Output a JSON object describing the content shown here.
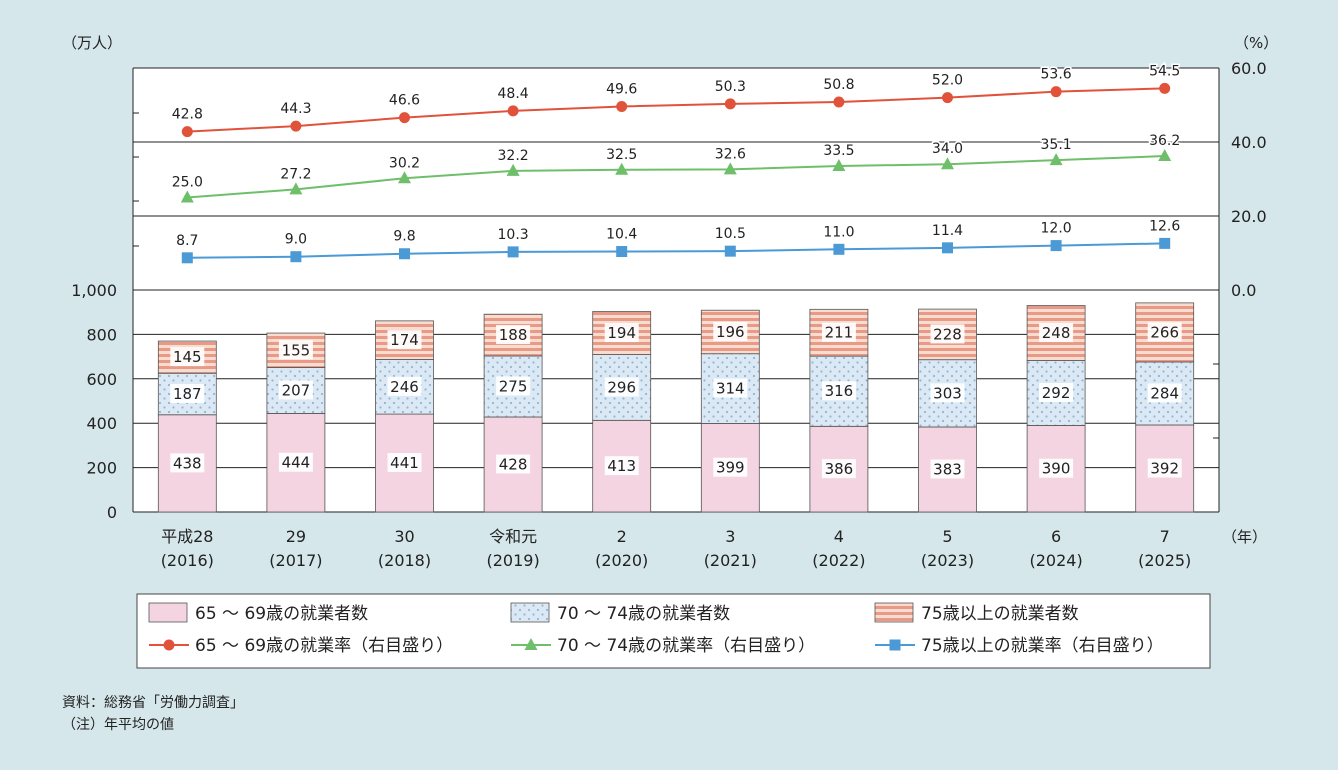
{
  "source_note": "資料：総務省「労働力調査」",
  "footnote": "（注）年平均の値",
  "colors": {
    "bar_65_69": "#f3d4e0",
    "bar_70_74": "#dce9f4",
    "bar_70_74_dot": "#8fb7d8",
    "bar_75_plus": "#f2c6b4",
    "bar_75_plus_stripe": "#e3887c",
    "line_65_69": "#e0533a",
    "line_70_74": "#6fbf6a",
    "line_75_plus": "#4b9ad6",
    "background": "#d6e7ec"
  },
  "chart_data": {
    "type": "bar",
    "categories": [
      [
        "平成28",
        "(2016)"
      ],
      [
        "29",
        "(2017)"
      ],
      [
        "30",
        "(2018)"
      ],
      [
        "令和元",
        "(2019)"
      ],
      [
        "2",
        "(2020)"
      ],
      [
        "3",
        "(2021)"
      ],
      [
        "4",
        "(2022)"
      ],
      [
        "5",
        "(2023)"
      ],
      [
        "6",
        "(2024)"
      ],
      [
        "7",
        "(2025)"
      ]
    ],
    "left_axis_unit": "（万人）",
    "right_axis_unit": "（%）",
    "x_axis_unit": "（年）",
    "left_axis": {
      "ylim": [
        0,
        1000
      ],
      "ticks": [
        "0",
        "200",
        "400",
        "600",
        "800",
        "1,000"
      ]
    },
    "right_axis": {
      "ylim": [
        0,
        60
      ],
      "ticks": [
        "0.0",
        "20.0",
        "40.0",
        "60.0"
      ]
    },
    "grid": true,
    "legend_position": "bottom",
    "bar_series": [
      {
        "name": "65 ～ 69歳の就業者数",
        "values": [
          438,
          444,
          441,
          428,
          413,
          399,
          386,
          383,
          390,
          392
        ]
      },
      {
        "name": "70 ～ 74歳の就業者数",
        "values": [
          187,
          207,
          246,
          275,
          296,
          314,
          316,
          303,
          292,
          284
        ]
      },
      {
        "name": "75歳以上の就業者数",
        "values": [
          145,
          155,
          174,
          188,
          194,
          196,
          211,
          228,
          248,
          266
        ]
      }
    ],
    "line_series": [
      {
        "name": "65 ～ 69歳の就業率（右目盛り）",
        "marker": "circle",
        "values": [
          42.8,
          44.3,
          46.6,
          48.4,
          49.6,
          50.3,
          50.8,
          52.0,
          53.6,
          54.5
        ],
        "labels": [
          "42.8",
          "44.3",
          "46.6",
          "48.4",
          "49.6",
          "50.3",
          "50.8",
          "52.0",
          "53.6",
          "54.5"
        ]
      },
      {
        "name": "70 ～ 74歳の就業率（右目盛り）",
        "marker": "triangle",
        "values": [
          25.0,
          27.2,
          30.2,
          32.2,
          32.5,
          32.6,
          33.5,
          34.0,
          35.1,
          36.2
        ],
        "labels": [
          "25.0",
          "27.2",
          "30.2",
          "32.2",
          "32.5",
          "32.6",
          "33.5",
          "34.0",
          "35.1",
          "36.2"
        ]
      },
      {
        "name": "75歳以上の就業率（右目盛り）",
        "marker": "square",
        "values": [
          8.7,
          9.0,
          9.8,
          10.3,
          10.4,
          10.5,
          11.0,
          11.4,
          12.0,
          12.6
        ],
        "labels": [
          "8.7",
          "9.0",
          "9.8",
          "10.3",
          "10.4",
          "10.5",
          "11.0",
          "11.4",
          "12.0",
          "12.6"
        ]
      }
    ]
  }
}
